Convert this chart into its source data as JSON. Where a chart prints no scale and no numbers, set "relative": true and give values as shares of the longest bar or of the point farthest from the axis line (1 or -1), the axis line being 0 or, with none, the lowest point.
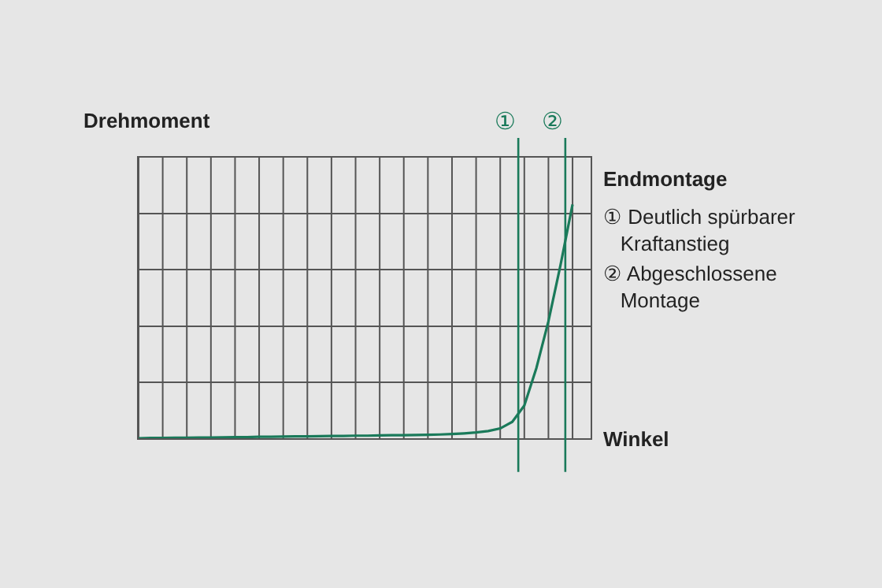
{
  "chart_data": {
    "type": "line",
    "relative": true,
    "xlabel": "Winkel",
    "ylabel": "Drehmoment",
    "categories": [
      null,
      null,
      null,
      null,
      null,
      null,
      null,
      null,
      null,
      null,
      null,
      null,
      null,
      null,
      null,
      null,
      null,
      null,
      null,
      null,
      null,
      null,
      null,
      null,
      null,
      null,
      null,
      null,
      null,
      null,
      null,
      null,
      null,
      null,
      null,
      null,
      null,
      null
    ],
    "grid": true,
    "legend": false,
    "marker": "none",
    "line_style": "solid",
    "series": [
      {
        "color": "#1a7a5a",
        "values": [
          0,
          0.001,
          0.001,
          0.002,
          0.002,
          0.003,
          0.003,
          0.004,
          0.005,
          0.005,
          0.006,
          0.006,
          0.007,
          0.008,
          0.008,
          0.009,
          0.01,
          0.01,
          0.011,
          0.011,
          0.012,
          0.013,
          0.013,
          0.014,
          0.015,
          0.016,
          0.018,
          0.021,
          0.025,
          0.031,
          0.042,
          0.07,
          0.14,
          0.3,
          0.5,
          0.74,
          1.0,
          null
        ]
      }
    ],
    "annotations": [
      "①",
      "②",
      "Endmontage",
      "① Deutlich spürbarer Kraftanstieg",
      "② Abgeschlossene Montage"
    ]
  }
}
